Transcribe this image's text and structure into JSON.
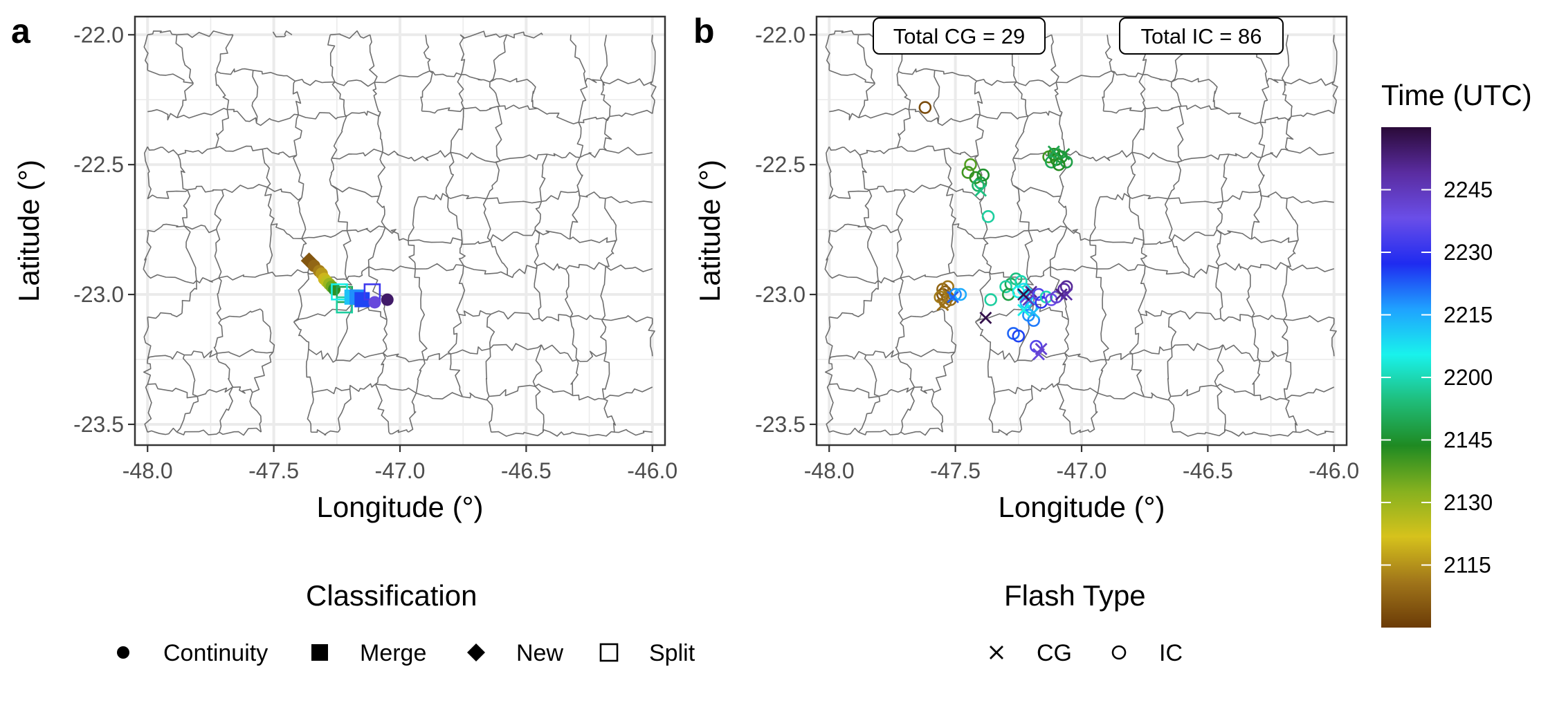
{
  "colors": {
    "panel_border": "#333333",
    "grid": "#ebebeb",
    "map_line": "#6e6e6e",
    "tick_text": "#4d4d4d",
    "colorbar_stops": [
      "#6b3b07",
      "#a0751a",
      "#d6c21c",
      "#86b11f",
      "#1f8a22",
      "#1fbe7c",
      "#19f2ec",
      "#1fa2ff",
      "#1f2bf0",
      "#6a4ee8",
      "#5a2ca0",
      "#2a0a38"
    ]
  },
  "panels": [
    {
      "label": "a",
      "xlabel": "Longitude (°)",
      "ylabel": "Latitude (°)",
      "xticks": [
        "-48.0",
        "-47.5",
        "-47.0",
        "-46.5",
        "-46.0"
      ],
      "yticks": [
        "-22.0",
        "-22.5",
        "-23.0",
        "-23.5"
      ]
    },
    {
      "label": "b",
      "xlabel": "Longitude (°)",
      "ylabel": "Latitude (°)",
      "xticks": [
        "-48.0",
        "-47.5",
        "-47.0",
        "-46.5",
        "-46.0"
      ],
      "yticks": [
        "-22.0",
        "-22.5",
        "-23.0",
        "-23.5"
      ],
      "annotations": [
        "Total CG = 29",
        "Total IC = 86"
      ]
    }
  ],
  "colorbar": {
    "title": "Time (UTC)",
    "labels": [
      "2245",
      "2230",
      "2215",
      "2200",
      "2145",
      "2130",
      "2115"
    ]
  },
  "legends": {
    "classification": {
      "title": "Classification",
      "items": [
        {
          "shape": "circle",
          "label": "Continuity"
        },
        {
          "shape": "square",
          "label": "Merge"
        },
        {
          "shape": "diamond",
          "label": "New"
        },
        {
          "shape": "open-square",
          "label": "Split"
        }
      ]
    },
    "flash_type": {
      "title": "Flash Type",
      "items": [
        {
          "shape": "cross",
          "label": "CG"
        },
        {
          "shape": "open-circle",
          "label": "IC"
        }
      ]
    }
  },
  "chart_data": [
    {
      "type": "scatter",
      "panel": "a",
      "xlim": [
        -48.05,
        -45.95
      ],
      "ylim": [
        -23.58,
        -21.93
      ],
      "grid": true,
      "points": [
        {
          "x": -47.36,
          "y": -22.87,
          "class": "New",
          "t": 2105
        },
        {
          "x": -47.34,
          "y": -22.89,
          "class": "Continuity",
          "t": 2108
        },
        {
          "x": -47.32,
          "y": -22.91,
          "class": "Continuity",
          "t": 2112
        },
        {
          "x": -47.31,
          "y": -22.92,
          "class": "Continuity",
          "t": 2116
        },
        {
          "x": -47.3,
          "y": -22.94,
          "class": "Continuity",
          "t": 2120
        },
        {
          "x": -47.29,
          "y": -22.95,
          "class": "Continuity",
          "t": 2125
        },
        {
          "x": -47.28,
          "y": -22.96,
          "class": "Continuity",
          "t": 2130
        },
        {
          "x": -47.27,
          "y": -22.97,
          "class": "Continuity",
          "t": 2135
        },
        {
          "x": -47.26,
          "y": -22.98,
          "class": "Continuity",
          "t": 2142
        },
        {
          "x": -47.22,
          "y": -23.0,
          "class": "Split",
          "t": 2150
        },
        {
          "x": -47.22,
          "y": -23.04,
          "class": "Split",
          "t": 2158
        },
        {
          "x": -47.24,
          "y": -22.99,
          "class": "Split",
          "t": 2205
        },
        {
          "x": -47.19,
          "y": -23.01,
          "class": "Merge",
          "t": 2212
        },
        {
          "x": -47.17,
          "y": -23.01,
          "class": "Merge",
          "t": 2218
        },
        {
          "x": -47.15,
          "y": -23.02,
          "class": "Merge",
          "t": 2225
        },
        {
          "x": -47.11,
          "y": -22.99,
          "class": "Split",
          "t": 2232
        },
        {
          "x": -47.1,
          "y": -23.03,
          "class": "Continuity",
          "t": 2240
        },
        {
          "x": -47.05,
          "y": -23.02,
          "class": "Continuity",
          "t": 2255
        }
      ]
    },
    {
      "type": "scatter",
      "panel": "b",
      "xlim": [
        -48.05,
        -45.95
      ],
      "ylim": [
        -23.58,
        -21.93
      ],
      "grid": true,
      "totals": {
        "CG": 29,
        "IC": 86
      },
      "points": [
        {
          "x": -47.62,
          "y": -22.28,
          "type": "IC",
          "t": 2103
        },
        {
          "x": -47.55,
          "y": -23.0,
          "type": "IC",
          "t": 2105
        },
        {
          "x": -47.54,
          "y": -22.99,
          "type": "IC",
          "t": 2106
        },
        {
          "x": -47.53,
          "y": -23.01,
          "type": "IC",
          "t": 2107
        },
        {
          "x": -47.55,
          "y": -22.98,
          "type": "IC",
          "t": 2108
        },
        {
          "x": -47.52,
          "y": -23.02,
          "type": "IC",
          "t": 2109
        },
        {
          "x": -47.54,
          "y": -23.03,
          "type": "IC",
          "t": 2110
        },
        {
          "x": -47.53,
          "y": -22.97,
          "type": "IC",
          "t": 2111
        },
        {
          "x": -47.56,
          "y": -23.01,
          "type": "IC",
          "t": 2112
        },
        {
          "x": -47.55,
          "y": -23.04,
          "type": "CG",
          "t": 2110
        },
        {
          "x": -47.5,
          "y": -23.0,
          "type": "IC",
          "t": 2218
        },
        {
          "x": -47.48,
          "y": -23.0,
          "type": "IC",
          "t": 2215
        },
        {
          "x": -47.51,
          "y": -23.01,
          "type": "CG",
          "t": 2222
        },
        {
          "x": -47.44,
          "y": -22.5,
          "type": "IC",
          "t": 2138
        },
        {
          "x": -47.45,
          "y": -22.53,
          "type": "IC",
          "t": 2140
        },
        {
          "x": -47.42,
          "y": -22.55,
          "type": "IC",
          "t": 2142
        },
        {
          "x": -47.4,
          "y": -22.57,
          "type": "IC",
          "t": 2148
        },
        {
          "x": -47.39,
          "y": -22.54,
          "type": "IC",
          "t": 2145
        },
        {
          "x": -47.41,
          "y": -22.58,
          "type": "IC",
          "t": 2152
        },
        {
          "x": -47.4,
          "y": -22.6,
          "type": "CG",
          "t": 2155
        },
        {
          "x": -47.37,
          "y": -22.7,
          "type": "IC",
          "t": 2158
        },
        {
          "x": -47.13,
          "y": -22.47,
          "type": "IC",
          "t": 2140
        },
        {
          "x": -47.11,
          "y": -22.46,
          "type": "IC",
          "t": 2142
        },
        {
          "x": -47.1,
          "y": -22.48,
          "type": "IC",
          "t": 2144
        },
        {
          "x": -47.08,
          "y": -22.47,
          "type": "IC",
          "t": 2146
        },
        {
          "x": -47.06,
          "y": -22.49,
          "type": "IC",
          "t": 2148
        },
        {
          "x": -47.12,
          "y": -22.49,
          "type": "IC",
          "t": 2150
        },
        {
          "x": -47.09,
          "y": -22.5,
          "type": "IC",
          "t": 2143
        },
        {
          "x": -47.07,
          "y": -22.46,
          "type": "CG",
          "t": 2147
        },
        {
          "x": -47.11,
          "y": -22.45,
          "type": "CG",
          "t": 2149
        },
        {
          "x": -47.28,
          "y": -22.96,
          "type": "IC",
          "t": 2150
        },
        {
          "x": -47.26,
          "y": -22.94,
          "type": "IC",
          "t": 2155
        },
        {
          "x": -47.24,
          "y": -22.95,
          "type": "IC",
          "t": 2200
        },
        {
          "x": -47.3,
          "y": -22.97,
          "type": "IC",
          "t": 2158
        },
        {
          "x": -47.29,
          "y": -23.0,
          "type": "IC",
          "t": 2148
        },
        {
          "x": -47.25,
          "y": -22.99,
          "type": "IC",
          "t": 2205
        },
        {
          "x": -47.23,
          "y": -22.98,
          "type": "IC",
          "t": 2208
        },
        {
          "x": -47.21,
          "y": -23.0,
          "type": "IC",
          "t": 2210
        },
        {
          "x": -47.22,
          "y": -23.03,
          "type": "IC",
          "t": 2212
        },
        {
          "x": -47.2,
          "y": -23.05,
          "type": "IC",
          "t": 2215
        },
        {
          "x": -47.21,
          "y": -23.08,
          "type": "IC",
          "t": 2218
        },
        {
          "x": -47.19,
          "y": -23.1,
          "type": "IC",
          "t": 2220
        },
        {
          "x": -47.23,
          "y": -23.06,
          "type": "CG",
          "t": 2205
        },
        {
          "x": -47.19,
          "y": -23.07,
          "type": "CG",
          "t": 2213
        },
        {
          "x": -47.22,
          "y": -23.01,
          "type": "CG",
          "t": 2240
        },
        {
          "x": -47.2,
          "y": -22.99,
          "type": "CG",
          "t": 2250
        },
        {
          "x": -47.21,
          "y": -23.02,
          "type": "CG",
          "t": 2245
        },
        {
          "x": -47.23,
          "y": -23.0,
          "type": "CG",
          "t": 2258
        },
        {
          "x": -47.17,
          "y": -23.0,
          "type": "IC",
          "t": 2235
        },
        {
          "x": -47.16,
          "y": -23.03,
          "type": "IC",
          "t": 2230
        },
        {
          "x": -47.14,
          "y": -23.01,
          "type": "IC",
          "t": 2160
        },
        {
          "x": -47.12,
          "y": -23.02,
          "type": "IC",
          "t": 2238
        },
        {
          "x": -47.1,
          "y": -23.01,
          "type": "IC",
          "t": 2242
        },
        {
          "x": -47.07,
          "y": -22.98,
          "type": "IC",
          "t": 2248
        },
        {
          "x": -47.06,
          "y": -22.97,
          "type": "IC",
          "t": 2250
        },
        {
          "x": -47.08,
          "y": -23.0,
          "type": "CG",
          "t": 2252
        },
        {
          "x": -47.06,
          "y": -23.0,
          "type": "CG",
          "t": 2248
        },
        {
          "x": -47.27,
          "y": -23.15,
          "type": "IC",
          "t": 2222
        },
        {
          "x": -47.25,
          "y": -23.16,
          "type": "IC",
          "t": 2225
        },
        {
          "x": -47.18,
          "y": -23.2,
          "type": "IC",
          "t": 2235
        },
        {
          "x": -47.17,
          "y": -23.23,
          "type": "CG",
          "t": 2240
        },
        {
          "x": -47.16,
          "y": -23.21,
          "type": "CG",
          "t": 2242
        },
        {
          "x": -47.36,
          "y": -23.02,
          "type": "IC",
          "t": 2158
        },
        {
          "x": -47.38,
          "y": -23.09,
          "type": "CG",
          "t": 2258
        }
      ]
    }
  ]
}
